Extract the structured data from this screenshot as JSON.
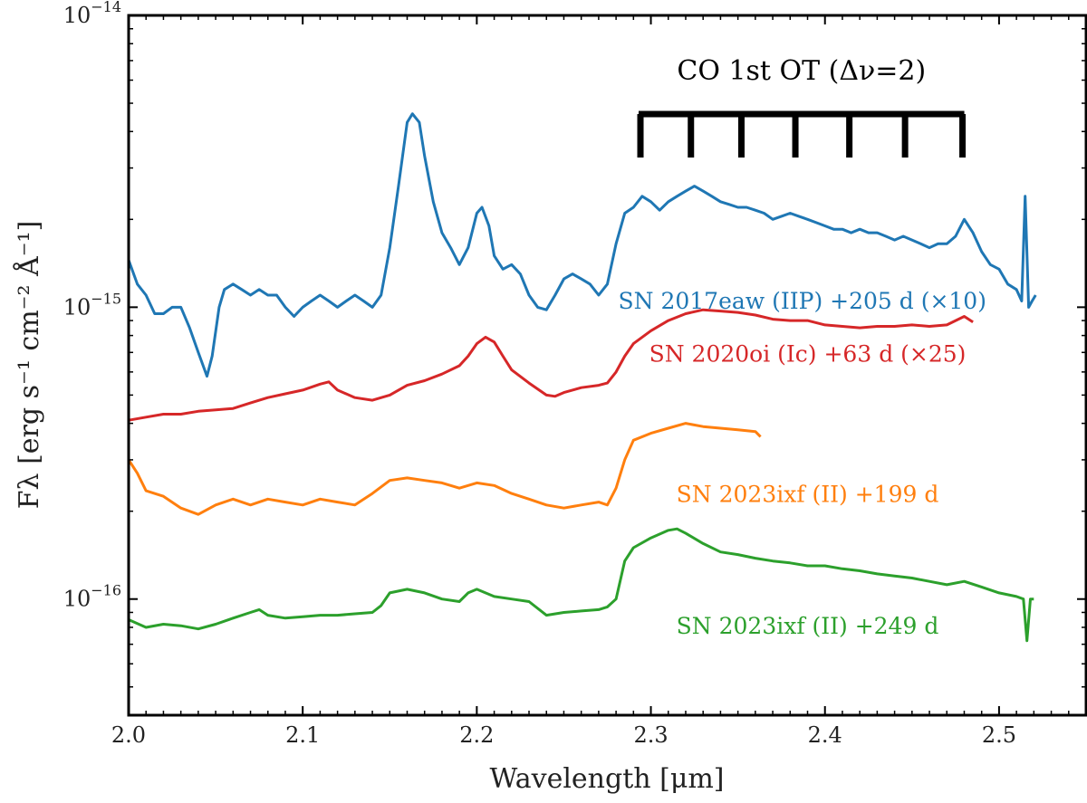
{
  "chart_data": {
    "type": "line",
    "title": "",
    "xlabel": "Wavelength [μm]",
    "ylabel": "Fλ [erg s⁻¹ cm⁻² Å⁻¹]",
    "xscale": "linear",
    "yscale": "log",
    "xlim": [
      2.0,
      2.55
    ],
    "ylim": [
      4e-17,
      1e-14
    ],
    "x_ticks": [
      2.0,
      2.1,
      2.2,
      2.3,
      2.4,
      2.5
    ],
    "x_tick_labels": [
      "2.0",
      "2.1",
      "2.2",
      "2.3",
      "2.4",
      "2.5"
    ],
    "y_tick_labels": [
      {
        "base": "10",
        "exp": "−14",
        "value": 1e-14
      },
      {
        "base": "10",
        "exp": "−15",
        "value": 1e-15
      },
      {
        "base": "10",
        "exp": "−16",
        "value": 1e-16
      }
    ],
    "annotation": {
      "text": "CO 1st OT (Δν=2)",
      "band_heads_um": [
        2.294,
        2.323,
        2.352,
        2.383,
        2.414,
        2.446,
        2.479
      ]
    },
    "series": [
      {
        "name": "SN 2017eaw (IIP) +205 d (×10)",
        "color": "#1f77b4",
        "label_at": [
          2.387,
          9.9e-16
        ],
        "x": [
          2.0,
          2.005,
          2.01,
          2.015,
          2.02,
          2.025,
          2.03,
          2.035,
          2.04,
          2.045,
          2.048,
          2.052,
          2.055,
          2.06,
          2.065,
          2.07,
          2.075,
          2.08,
          2.085,
          2.09,
          2.095,
          2.1,
          2.105,
          2.11,
          2.115,
          2.12,
          2.125,
          2.13,
          2.135,
          2.14,
          2.145,
          2.15,
          2.155,
          2.16,
          2.163,
          2.167,
          2.17,
          2.175,
          2.18,
          2.185,
          2.19,
          2.195,
          2.2,
          2.203,
          2.207,
          2.21,
          2.215,
          2.22,
          2.225,
          2.23,
          2.235,
          2.24,
          2.245,
          2.25,
          2.255,
          2.26,
          2.265,
          2.27,
          2.275,
          2.28,
          2.285,
          2.29,
          2.295,
          2.3,
          2.305,
          2.31,
          2.315,
          2.32,
          2.325,
          2.33,
          2.335,
          2.34,
          2.345,
          2.35,
          2.355,
          2.36,
          2.365,
          2.37,
          2.375,
          2.38,
          2.385,
          2.39,
          2.395,
          2.4,
          2.405,
          2.41,
          2.415,
          2.42,
          2.425,
          2.43,
          2.435,
          2.44,
          2.445,
          2.45,
          2.455,
          2.46,
          2.465,
          2.47,
          2.475,
          2.48,
          2.485,
          2.49,
          2.495,
          2.5,
          2.505,
          2.51,
          2.513,
          2.515,
          2.517,
          2.519,
          2.521
        ],
        "y": [
          1.45e-15,
          1.2e-15,
          1.1e-15,
          9.5e-16,
          9.5e-16,
          1e-15,
          1e-15,
          8.5e-16,
          7e-16,
          5.8e-16,
          6.8e-16,
          1e-15,
          1.15e-15,
          1.2e-15,
          1.15e-15,
          1.1e-15,
          1.15e-15,
          1.1e-15,
          1.1e-15,
          1e-15,
          9.3e-16,
          1e-15,
          1.05e-15,
          1.1e-15,
          1.05e-15,
          1e-15,
          1.05e-15,
          1.1e-15,
          1.05e-15,
          1e-15,
          1.1e-15,
          1.6e-15,
          2.6e-15,
          4.3e-15,
          4.6e-15,
          4.3e-15,
          3.3e-15,
          2.3e-15,
          1.8e-15,
          1.6e-15,
          1.4e-15,
          1.6e-15,
          2.1e-15,
          2.2e-15,
          1.9e-15,
          1.5e-15,
          1.35e-15,
          1.4e-15,
          1.3e-15,
          1.1e-15,
          1e-15,
          9.8e-16,
          1.1e-15,
          1.25e-15,
          1.3e-15,
          1.25e-15,
          1.2e-15,
          1.1e-15,
          1.2e-15,
          1.65e-15,
          2.1e-15,
          2.2e-15,
          2.4e-15,
          2.3e-15,
          2.15e-15,
          2.3e-15,
          2.4e-15,
          2.5e-15,
          2.6e-15,
          2.5e-15,
          2.4e-15,
          2.3e-15,
          2.25e-15,
          2.2e-15,
          2.2e-15,
          2.15e-15,
          2.1e-15,
          2e-15,
          2.05e-15,
          2.1e-15,
          2.05e-15,
          2e-15,
          1.95e-15,
          1.9e-15,
          1.85e-15,
          1.85e-15,
          1.8e-15,
          1.85e-15,
          1.8e-15,
          1.8e-15,
          1.75e-15,
          1.7e-15,
          1.75e-15,
          1.7e-15,
          1.65e-15,
          1.6e-15,
          1.65e-15,
          1.65e-15,
          1.75e-15,
          2e-15,
          1.8e-15,
          1.55e-15,
          1.4e-15,
          1.35e-15,
          1.2e-15,
          1.15e-15,
          1.05e-15,
          2.4e-15,
          1e-15,
          1.05e-15,
          1.1e-15
        ]
      },
      {
        "name": "SN 2020oi (Ic) +63 d (×25)",
        "color": "#d62728",
        "label_at": [
          2.39,
          6.5e-16
        ],
        "x": [
          2.0,
          2.01,
          2.02,
          2.03,
          2.04,
          2.05,
          2.06,
          2.07,
          2.08,
          2.09,
          2.1,
          2.11,
          2.115,
          2.12,
          2.13,
          2.14,
          2.15,
          2.16,
          2.17,
          2.18,
          2.19,
          2.195,
          2.2,
          2.205,
          2.21,
          2.215,
          2.22,
          2.23,
          2.24,
          2.245,
          2.25,
          2.26,
          2.27,
          2.275,
          2.28,
          2.285,
          2.29,
          2.3,
          2.31,
          2.32,
          2.33,
          2.34,
          2.35,
          2.36,
          2.37,
          2.38,
          2.39,
          2.4,
          2.41,
          2.42,
          2.43,
          2.44,
          2.45,
          2.46,
          2.47,
          2.48,
          2.485
        ],
        "y": [
          4.1e-16,
          4.2e-16,
          4.3e-16,
          4.3e-16,
          4.4e-16,
          4.45e-16,
          4.5e-16,
          4.7e-16,
          4.9e-16,
          5.05e-16,
          5.2e-16,
          5.45e-16,
          5.55e-16,
          5.2e-16,
          4.9e-16,
          4.8e-16,
          5e-16,
          5.4e-16,
          5.6e-16,
          5.9e-16,
          6.3e-16,
          6.8e-16,
          7.5e-16,
          7.9e-16,
          7.6e-16,
          6.8e-16,
          6.1e-16,
          5.5e-16,
          5e-16,
          4.95e-16,
          5.1e-16,
          5.3e-16,
          5.4e-16,
          5.5e-16,
          6e-16,
          6.8e-16,
          7.5e-16,
          8.3e-16,
          9e-16,
          9.5e-16,
          9.8e-16,
          9.7e-16,
          9.6e-16,
          9.4e-16,
          9.1e-16,
          9e-16,
          9e-16,
          8.7e-16,
          8.6e-16,
          8.5e-16,
          8.6e-16,
          8.6e-16,
          8.7e-16,
          8.6e-16,
          8.7e-16,
          9.3e-16,
          8.9e-16
        ]
      },
      {
        "name": "SN 2023ixf (II) +199 d",
        "color": "#ff7f0e",
        "label_at": [
          2.39,
          2.15e-16
        ],
        "x": [
          2.0,
          2.005,
          2.01,
          2.02,
          2.03,
          2.04,
          2.05,
          2.06,
          2.07,
          2.08,
          2.09,
          2.1,
          2.11,
          2.12,
          2.13,
          2.14,
          2.15,
          2.16,
          2.17,
          2.18,
          2.19,
          2.2,
          2.21,
          2.22,
          2.23,
          2.24,
          2.25,
          2.26,
          2.27,
          2.275,
          2.28,
          2.285,
          2.29,
          2.3,
          2.31,
          2.32,
          2.33,
          2.34,
          2.35,
          2.36,
          2.363
        ],
        "y": [
          3e-16,
          2.7e-16,
          2.35e-16,
          2.25e-16,
          2.05e-16,
          1.95e-16,
          2.1e-16,
          2.2e-16,
          2.1e-16,
          2.2e-16,
          2.15e-16,
          2.1e-16,
          2.2e-16,
          2.15e-16,
          2.1e-16,
          2.3e-16,
          2.55e-16,
          2.6e-16,
          2.55e-16,
          2.5e-16,
          2.4e-16,
          2.5e-16,
          2.45e-16,
          2.3e-16,
          2.2e-16,
          2.1e-16,
          2.05e-16,
          2.1e-16,
          2.15e-16,
          2.1e-16,
          2.4e-16,
          3e-16,
          3.5e-16,
          3.7e-16,
          3.85e-16,
          4e-16,
          3.9e-16,
          3.85e-16,
          3.8e-16,
          3.75e-16,
          3.6e-16
        ]
      },
      {
        "name": "SN 2023ixf (II) +249 d",
        "color": "#2ca02c",
        "label_at": [
          2.39,
          7.6e-17
        ],
        "x": [
          2.0,
          2.01,
          2.02,
          2.03,
          2.04,
          2.05,
          2.06,
          2.07,
          2.075,
          2.08,
          2.09,
          2.1,
          2.11,
          2.12,
          2.13,
          2.14,
          2.145,
          2.15,
          2.16,
          2.17,
          2.18,
          2.19,
          2.195,
          2.2,
          2.21,
          2.22,
          2.23,
          2.24,
          2.25,
          2.26,
          2.27,
          2.275,
          2.28,
          2.285,
          2.29,
          2.3,
          2.31,
          2.315,
          2.32,
          2.33,
          2.34,
          2.35,
          2.36,
          2.37,
          2.38,
          2.39,
          2.4,
          2.41,
          2.42,
          2.43,
          2.44,
          2.45,
          2.46,
          2.47,
          2.48,
          2.49,
          2.5,
          2.51,
          2.514,
          2.516,
          2.518,
          2.52
        ],
        "y": [
          8.5e-17,
          8e-17,
          8.2e-17,
          8.1e-17,
          7.9e-17,
          8.2e-17,
          8.6e-17,
          9e-17,
          9.2e-17,
          8.8e-17,
          8.6e-17,
          8.7e-17,
          8.8e-17,
          8.8e-17,
          8.9e-17,
          9e-17,
          9.5e-17,
          1.05e-16,
          1.08e-16,
          1.05e-16,
          1e-16,
          9.8e-17,
          1.05e-16,
          1.08e-16,
          1.02e-16,
          1e-16,
          9.8e-17,
          8.8e-17,
          9e-17,
          9.1e-17,
          9.2e-17,
          9.4e-17,
          1e-16,
          1.35e-16,
          1.5e-16,
          1.62e-16,
          1.72e-16,
          1.74e-16,
          1.68e-16,
          1.55e-16,
          1.45e-16,
          1.42e-16,
          1.38e-16,
          1.35e-16,
          1.33e-16,
          1.3e-16,
          1.3e-16,
          1.27e-16,
          1.25e-16,
          1.22e-16,
          1.2e-16,
          1.18e-16,
          1.15e-16,
          1.12e-16,
          1.15e-16,
          1.1e-16,
          1.05e-16,
          1.02e-16,
          1e-16,
          7.2e-17,
          1e-16,
          1e-16
        ]
      }
    ]
  }
}
